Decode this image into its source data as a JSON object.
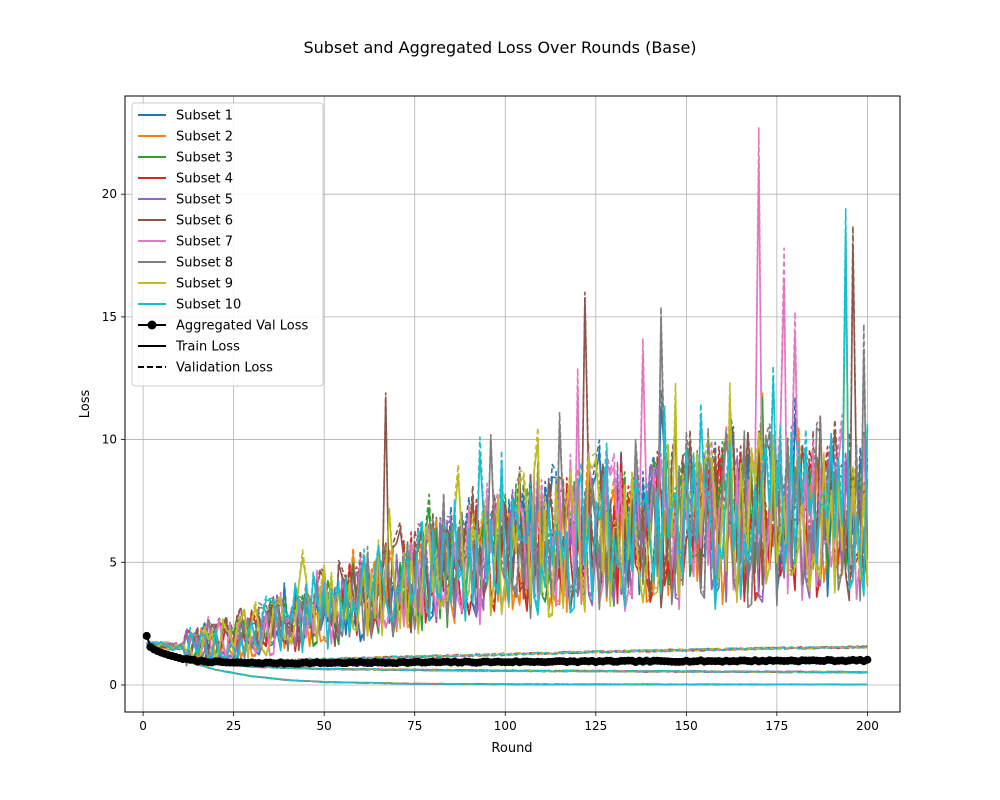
{
  "chart_data": {
    "type": "line",
    "title": "Subset and Aggregated Loss Over Rounds (Base)",
    "xlabel": "Round",
    "ylabel": "Loss",
    "xlim": [
      -5,
      209
    ],
    "ylim": [
      -1.1,
      24
    ],
    "xticks": [
      0,
      25,
      50,
      75,
      100,
      125,
      150,
      175,
      200
    ],
    "yticks": [
      0,
      5,
      10,
      15,
      20
    ],
    "grid": true,
    "legend_position": "top-left",
    "rounds": [
      1,
      200
    ],
    "subsets": [
      {
        "name": "Subset 1",
        "color": "#1f77b4",
        "val_loss": [
          [
            1,
            1.7
          ],
          [
            10,
            1.6
          ],
          [
            25,
            1.9
          ],
          [
            50,
            3.2
          ],
          [
            75,
            4.4
          ],
          [
            100,
            5.7
          ],
          [
            125,
            6.4
          ],
          [
            150,
            6.7
          ],
          [
            175,
            7.0
          ],
          [
            200,
            7.2
          ]
        ],
        "val_spikes": [
          [
            143,
            12.0
          ],
          [
            162,
            11.3
          ]
        ],
        "noise": 0.22,
        "seed": 11
      },
      {
        "name": "Subset 2",
        "color": "#ff7f0e",
        "val_loss": [
          [
            1,
            1.7
          ],
          [
            10,
            1.6
          ],
          [
            25,
            1.9
          ],
          [
            50,
            3.1
          ],
          [
            75,
            4.3
          ],
          [
            100,
            5.6
          ],
          [
            125,
            6.3
          ],
          [
            150,
            6.6
          ],
          [
            175,
            6.9
          ],
          [
            200,
            7.1
          ]
        ],
        "val_spikes": [
          [
            123,
            9.8
          ],
          [
            181,
            10.5
          ]
        ],
        "noise": 0.22,
        "seed": 23
      },
      {
        "name": "Subset 3",
        "color": "#2ca02c",
        "val_loss": [
          [
            1,
            1.7
          ],
          [
            10,
            1.6
          ],
          [
            25,
            1.9
          ],
          [
            50,
            3.0
          ],
          [
            75,
            4.3
          ],
          [
            100,
            5.5
          ],
          [
            125,
            6.2
          ],
          [
            150,
            6.6
          ],
          [
            175,
            6.9
          ],
          [
            200,
            7.1
          ]
        ],
        "val_spikes": [
          [
            170,
            9.5
          ]
        ],
        "noise": 0.22,
        "seed": 37
      },
      {
        "name": "Subset 4",
        "color": "#d62728",
        "val_loss": [
          [
            1,
            1.7
          ],
          [
            10,
            1.6
          ],
          [
            25,
            1.9
          ],
          [
            50,
            3.1
          ],
          [
            75,
            4.4
          ],
          [
            100,
            5.6
          ],
          [
            125,
            6.3
          ],
          [
            150,
            6.6
          ],
          [
            175,
            6.9
          ],
          [
            200,
            7.2
          ]
        ],
        "val_spikes": [
          [
            155,
            9.0
          ]
        ],
        "noise": 0.22,
        "seed": 41
      },
      {
        "name": "Subset 5",
        "color": "#9467bd",
        "val_loss": [
          [
            1,
            1.7
          ],
          [
            10,
            1.6
          ],
          [
            25,
            1.9
          ],
          [
            50,
            3.1
          ],
          [
            75,
            4.3
          ],
          [
            100,
            5.6
          ],
          [
            125,
            6.2
          ],
          [
            150,
            6.5
          ],
          [
            175,
            6.9
          ],
          [
            200,
            7.0
          ]
        ],
        "val_spikes": [
          [
            190,
            10.0
          ]
        ],
        "noise": 0.22,
        "seed": 53
      },
      {
        "name": "Subset 6",
        "color": "#8c564b",
        "val_loss": [
          [
            1,
            1.7
          ],
          [
            10,
            1.6
          ],
          [
            25,
            2.0
          ],
          [
            50,
            3.3
          ],
          [
            75,
            4.6
          ],
          [
            100,
            5.8
          ],
          [
            125,
            6.5
          ],
          [
            150,
            6.8
          ],
          [
            175,
            7.1
          ],
          [
            200,
            7.3
          ]
        ],
        "val_spikes": [
          [
            67,
            11.9
          ],
          [
            122,
            16.0
          ],
          [
            196,
            18.7
          ],
          [
            147,
            10.4
          ]
        ],
        "noise": 0.24,
        "seed": 61
      },
      {
        "name": "Subset 7",
        "color": "#e377c2",
        "val_loss": [
          [
            1,
            1.7
          ],
          [
            10,
            1.6
          ],
          [
            25,
            2.0
          ],
          [
            50,
            3.2
          ],
          [
            75,
            4.5
          ],
          [
            100,
            5.7
          ],
          [
            125,
            6.4
          ],
          [
            150,
            6.8
          ],
          [
            175,
            7.1
          ],
          [
            200,
            7.3
          ]
        ],
        "val_spikes": [
          [
            120,
            12.9
          ],
          [
            138,
            14.1
          ],
          [
            170,
            22.7
          ],
          [
            177,
            17.8
          ],
          [
            180,
            15.2
          ],
          [
            193,
            11.0
          ]
        ],
        "noise": 0.24,
        "seed": 73
      },
      {
        "name": "Subset 8",
        "color": "#7f7f7f",
        "val_loss": [
          [
            1,
            1.7
          ],
          [
            10,
            1.6
          ],
          [
            25,
            2.0
          ],
          [
            50,
            3.2
          ],
          [
            75,
            4.5
          ],
          [
            100,
            5.7
          ],
          [
            125,
            6.4
          ],
          [
            150,
            6.8
          ],
          [
            175,
            7.1
          ],
          [
            200,
            7.3
          ]
        ],
        "val_spikes": [
          [
            96,
            10.2
          ],
          [
            115,
            11.1
          ],
          [
            143,
            15.4
          ],
          [
            199,
            14.7
          ]
        ],
        "noise": 0.24,
        "seed": 83
      },
      {
        "name": "Subset 9",
        "color": "#bcbd22",
        "val_loss": [
          [
            1,
            1.7
          ],
          [
            10,
            1.6
          ],
          [
            25,
            2.0
          ],
          [
            50,
            3.2
          ],
          [
            75,
            4.4
          ],
          [
            100,
            5.6
          ],
          [
            125,
            6.3
          ],
          [
            150,
            6.6
          ],
          [
            175,
            7.0
          ],
          [
            200,
            7.1
          ]
        ],
        "val_spikes": [
          [
            44,
            5.5
          ],
          [
            162,
            12.3
          ],
          [
            194,
            18.3
          ]
        ],
        "noise": 0.24,
        "seed": 97
      },
      {
        "name": "Subset 10",
        "color": "#17becf",
        "val_loss": [
          [
            1,
            1.7
          ],
          [
            10,
            1.6
          ],
          [
            25,
            2.0
          ],
          [
            50,
            3.2
          ],
          [
            75,
            4.5
          ],
          [
            100,
            5.7
          ],
          [
            125,
            6.4
          ],
          [
            150,
            6.8
          ],
          [
            175,
            7.1
          ],
          [
            200,
            7.3
          ]
        ],
        "val_spikes": [
          [
            93,
            10.1
          ],
          [
            174,
            13.0
          ],
          [
            194,
            19.4
          ]
        ],
        "noise": 0.24,
        "seed": 101
      }
    ],
    "train_loss_curve": [
      [
        1,
        1.7
      ],
      [
        5,
        1.35
      ],
      [
        10,
        1.05
      ],
      [
        20,
        0.62
      ],
      [
        30,
        0.36
      ],
      [
        40,
        0.2
      ],
      [
        50,
        0.12
      ],
      [
        75,
        0.05
      ],
      [
        100,
        0.03
      ],
      [
        200,
        0.02
      ]
    ],
    "lower_val_curve": [
      [
        1,
        1.7
      ],
      [
        5,
        1.4
      ],
      [
        10,
        1.15
      ],
      [
        20,
        0.95
      ],
      [
        30,
        0.95
      ],
      [
        40,
        1.0
      ],
      [
        50,
        1.05
      ],
      [
        75,
        1.15
      ],
      [
        100,
        1.25
      ],
      [
        125,
        1.35
      ],
      [
        150,
        1.42
      ],
      [
        175,
        1.5
      ],
      [
        200,
        1.55
      ]
    ],
    "lower_mid_curve": [
      [
        1,
        1.7
      ],
      [
        5,
        1.35
      ],
      [
        10,
        1.1
      ],
      [
        20,
        0.85
      ],
      [
        30,
        0.75
      ],
      [
        50,
        0.65
      ],
      [
        100,
        0.58
      ],
      [
        150,
        0.55
      ],
      [
        200,
        0.52
      ]
    ],
    "aggregated_val_loss": {
      "name": "Aggregated Val Loss",
      "color": "#000000",
      "points": [
        [
          1,
          2.0
        ],
        [
          2,
          1.55
        ],
        [
          3,
          1.45
        ],
        [
          4,
          1.38
        ],
        [
          5,
          1.32
        ],
        [
          6,
          1.27
        ],
        [
          7,
          1.22
        ],
        [
          8,
          1.18
        ],
        [
          9,
          1.14
        ],
        [
          10,
          1.1
        ],
        [
          12,
          1.04
        ],
        [
          15,
          0.98
        ],
        [
          20,
          0.94
        ],
        [
          25,
          0.91
        ],
        [
          30,
          0.9
        ],
        [
          40,
          0.89
        ],
        [
          50,
          0.9
        ],
        [
          60,
          0.91
        ],
        [
          75,
          0.92
        ],
        [
          100,
          0.94
        ],
        [
          125,
          0.96
        ],
        [
          150,
          0.97
        ],
        [
          175,
          0.99
        ],
        [
          200,
          1.0
        ]
      ]
    },
    "legend": [
      {
        "label": "Subset 1",
        "color": "#1f77b4",
        "style": "solid"
      },
      {
        "label": "Subset 2",
        "color": "#ff7f0e",
        "style": "solid"
      },
      {
        "label": "Subset 3",
        "color": "#2ca02c",
        "style": "solid"
      },
      {
        "label": "Subset 4",
        "color": "#d62728",
        "style": "solid"
      },
      {
        "label": "Subset 5",
        "color": "#9467bd",
        "style": "solid"
      },
      {
        "label": "Subset 6",
        "color": "#8c564b",
        "style": "solid"
      },
      {
        "label": "Subset 7",
        "color": "#e377c2",
        "style": "solid"
      },
      {
        "label": "Subset 8",
        "color": "#7f7f7f",
        "style": "solid"
      },
      {
        "label": "Subset 9",
        "color": "#bcbd22",
        "style": "solid"
      },
      {
        "label": "Subset 10",
        "color": "#17becf",
        "style": "solid"
      },
      {
        "label": "Aggregated Val Loss",
        "color": "#000000",
        "style": "marker-line"
      },
      {
        "label": "Train Loss",
        "color": "#000000",
        "style": "solid"
      },
      {
        "label": "Validation Loss",
        "color": "#000000",
        "style": "dashed"
      }
    ]
  }
}
